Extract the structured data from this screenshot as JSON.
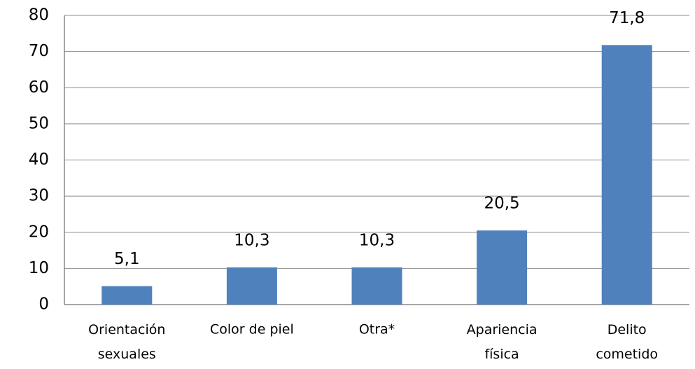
{
  "chart_data": {
    "type": "bar",
    "categories": [
      "Orientación\nsexuales",
      "Color de piel",
      "Otra*",
      "Apariencia\nfísica",
      "Delito\ncometido"
    ],
    "values": [
      5.1,
      10.3,
      10.3,
      20.5,
      71.8
    ],
    "value_labels": [
      "5,1",
      "10,3",
      "10,3",
      "20,5",
      "71,8"
    ],
    "color": "#4f81bd",
    "ylim": [
      0,
      80
    ],
    "yticks": [
      0,
      10,
      20,
      30,
      40,
      50,
      60,
      70,
      80
    ],
    "grid": true
  }
}
